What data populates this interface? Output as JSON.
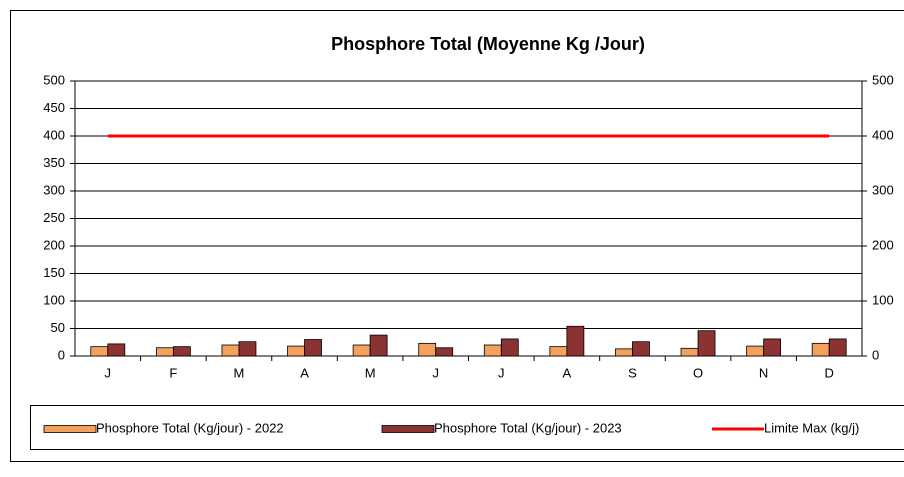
{
  "chart_data": {
    "type": "bar",
    "title": "Phosphore Total (Moyenne Kg /Jour)",
    "categories": [
      "J",
      "F",
      "M",
      "A",
      "M",
      "J",
      "J",
      "A",
      "S",
      "O",
      "N",
      "D"
    ],
    "series": [
      {
        "name": "Phosphore Total (Kg/jour) - 2022",
        "color": "#f4a15d",
        "type": "bar",
        "values": [
          17,
          15,
          20,
          18,
          20,
          23,
          20,
          17,
          13,
          14,
          18,
          23
        ]
      },
      {
        "name": "Phosphore Total (Kg/jour) - 2023",
        "color": "#8b3232",
        "type": "bar",
        "values": [
          22,
          17,
          26,
          30,
          38,
          15,
          31,
          54,
          26,
          46,
          31,
          31
        ]
      },
      {
        "name": "Limite Max (kg/j)",
        "color": "#ff0000",
        "type": "line",
        "values": [
          400,
          400,
          400,
          400,
          400,
          400,
          400,
          400,
          400,
          400,
          400,
          400
        ]
      }
    ],
    "ylim": [
      0,
      500
    ],
    "yticks": [
      0,
      50,
      100,
      150,
      200,
      250,
      300,
      350,
      400,
      450,
      500
    ],
    "y2lim": [
      0,
      500
    ],
    "y2ticks": [
      0,
      100,
      200,
      300,
      400,
      500
    ],
    "grid": true,
    "legend": "bottom"
  }
}
